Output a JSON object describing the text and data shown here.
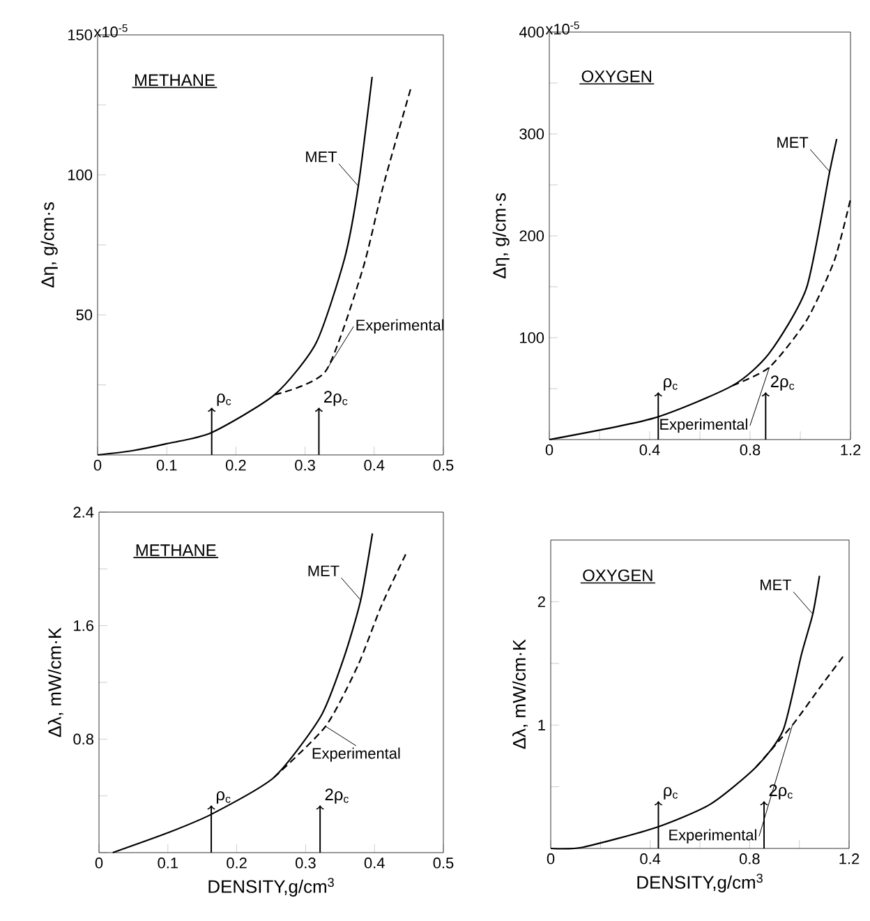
{
  "chart_data": [
    {
      "type": "line",
      "title": "METHANE",
      "ylabel": "Δη, g/cm·s",
      "xlim": [
        0,
        0.5
      ],
      "ylim": [
        0,
        150
      ],
      "xticks": [
        0,
        0.1,
        0.2,
        0.3,
        0.4,
        0.5
      ],
      "yticks": [
        {
          "value": 0,
          "label": null
        },
        {
          "value": 25,
          "label": null
        },
        50,
        {
          "value": 75,
          "label": null
        },
        100,
        {
          "value": 125,
          "label": null
        },
        150
      ],
      "series": [
        {
          "name": "MET",
          "color": "#000000",
          "line_style": "solid",
          "x": [
            0,
            0.05,
            0.1,
            0.165,
            0.256,
            0.316,
            0.357,
            0.377,
            0.397
          ],
          "values": [
            0,
            1.5,
            4,
            8,
            21.5,
            40,
            70,
            96,
            135
          ]
        },
        {
          "name": "Experimental",
          "color": "#000000",
          "line_style": "dashed",
          "x": [
            0.256,
            0.33,
            0.383,
            0.413,
            0.453
          ],
          "values": [
            21.5,
            30,
            66,
            96,
            131
          ]
        }
      ],
      "ref_lines": [
        {
          "axis": "x",
          "value": 0.165,
          "label": "ρ$_{c}$"
        },
        {
          "axis": "x",
          "value": 0.32,
          "label": "2ρ$_{c}$"
        }
      ],
      "annotations": [
        "x10$^{-5}$"
      ]
    },
    {
      "type": "line",
      "title": "OXYGEN",
      "ylabel": "Δη, g/cm·s",
      "xlim": [
        0,
        1.2
      ],
      "ylim": [
        0,
        400
      ],
      "xticks": [
        0,
        {
          "value": 0.2,
          "label": null
        },
        0.4,
        {
          "value": 0.6,
          "label": null
        },
        0.8,
        {
          "value": 1.0,
          "label": null
        },
        1.2
      ],
      "yticks": [
        {
          "value": 0,
          "label": null
        },
        {
          "value": 50,
          "label": null
        },
        100,
        {
          "value": 150,
          "label": null
        },
        200,
        {
          "value": 250,
          "label": null
        },
        300,
        {
          "value": 350,
          "label": null
        },
        400
      ],
      "series": [
        {
          "name": "MET",
          "color": "#000000",
          "line_style": "solid",
          "x": [
            0,
            0.415,
            0.73,
            0.877,
            1.025,
            1.117,
            1.145
          ],
          "values": [
            0,
            21,
            53,
            85,
            149,
            263,
            295
          ]
        },
        {
          "name": "Experimental",
          "color": "#000000",
          "line_style": "dashed",
          "x": [
            0.73,
            0.877,
            1.025,
            1.136,
            1.2
          ],
          "values": [
            53,
            71,
            117,
            176,
            236
          ]
        }
      ],
      "ref_lines": [
        {
          "axis": "x",
          "value": 0.434,
          "label": "ρ$_{c}$"
        },
        {
          "axis": "x",
          "value": 0.862,
          "label": "2ρ$_{c}$"
        }
      ],
      "annotations": [
        "x10$^{-5}$"
      ]
    },
    {
      "type": "line",
      "title": "METHANE",
      "ylabel": "Δλ, mW/cm·K",
      "xlabel": "DENSITY,g/cm$^{3}$",
      "xlim": [
        0,
        0.5
      ],
      "ylim": [
        0,
        2.4
      ],
      "xticks": [
        0,
        0.1,
        0.2,
        0.3,
        0.4,
        0.5
      ],
      "yticks": [
        {
          "value": 0,
          "label": null
        },
        {
          "value": 0.4,
          "label": null
        },
        0.8,
        {
          "value": 1.2,
          "label": null
        },
        1.6,
        {
          "value": 2.0,
          "label": null
        },
        2.4
      ],
      "series": [
        {
          "name": "MET",
          "color": "#000000",
          "line_style": "solid",
          "x": [
            0.02,
            0.1,
            0.163,
            0.254,
            0.322,
            0.356,
            0.38,
            0.397
          ],
          "values": [
            0,
            0.14,
            0.27,
            0.53,
            0.96,
            1.38,
            1.78,
            2.25
          ]
        },
        {
          "name": "Experimental",
          "color": "#000000",
          "line_style": "dashed",
          "x": [
            0.254,
            0.329,
            0.376,
            0.41,
            0.447
          ],
          "values": [
            0.53,
            0.89,
            1.32,
            1.74,
            2.12
          ]
        }
      ],
      "ref_lines": [
        {
          "axis": "x",
          "value": 0.163,
          "label": "ρ$_{c}$"
        },
        {
          "axis": "x",
          "value": 0.321,
          "label": "2ρ$_{c}$"
        }
      ]
    },
    {
      "type": "line",
      "title": "OXYGEN",
      "ylabel": "Δλ, mW/cm·K",
      "xlabel": "DENSITY,g/cm$^{3}$",
      "xlim": [
        0,
        1.2
      ],
      "ylim": [
        0,
        2.5
      ],
      "xticks": [
        0,
        {
          "value": 0.2,
          "label": null
        },
        0.4,
        {
          "value": 0.6,
          "label": null
        },
        0.8,
        {
          "value": 1.0,
          "label": null
        },
        1.2
      ],
      "yticks": [
        {
          "value": 0,
          "label": null
        },
        {
          "value": 0.5,
          "label": null
        },
        1,
        {
          "value": 1.5,
          "label": null
        },
        2
      ],
      "series": [
        {
          "name": "MET",
          "color": "#000000",
          "line_style": "solid",
          "x": [
            0,
            0.13,
            0.424,
            0.643,
            0.826,
            0.935,
            1.008,
            1.054,
            1.081
          ],
          "values": [
            0,
            0.01,
            0.17,
            0.36,
            0.66,
            0.96,
            1.57,
            1.9,
            2.21
          ]
        },
        {
          "name": "Experimental",
          "color": "#000000",
          "line_style": "dashed",
          "x": [
            0.826,
            0.972,
            1.081,
            1.181
          ],
          "values": [
            0.66,
            1.0,
            1.3,
            1.57
          ]
        }
      ],
      "ref_lines": [
        {
          "axis": "x",
          "value": 0.433,
          "label": "ρ$_{c}$"
        },
        {
          "axis": "x",
          "value": 0.858,
          "label": "2ρ$_{c}$"
        }
      ]
    }
  ]
}
